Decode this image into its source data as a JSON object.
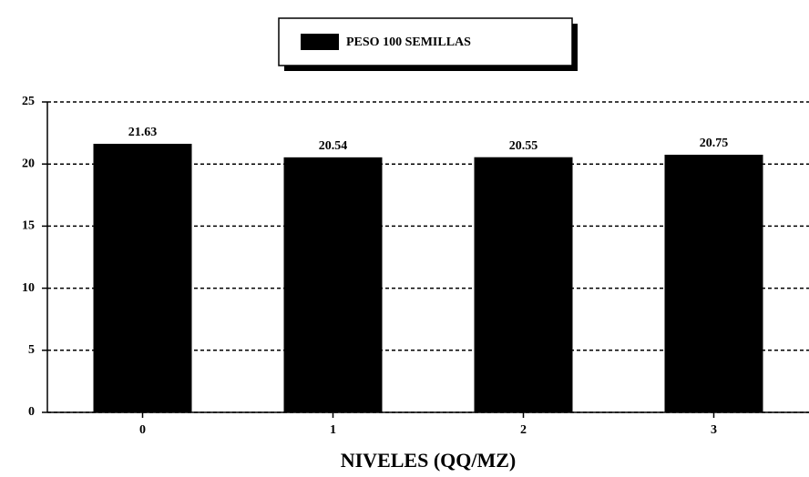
{
  "chart_data": {
    "type": "bar",
    "legend": "PESO 100 SEMILLAS",
    "x_label": "NIVELES (QQ/MZ)",
    "categories": [
      "0",
      "1",
      "2",
      "3"
    ],
    "values": [
      21.63,
      20.54,
      20.55,
      20.75
    ],
    "color": "#000000",
    "ylim": [
      0,
      25
    ],
    "yticks": [
      0,
      5,
      10,
      15,
      20,
      25
    ],
    "grid": true
  }
}
